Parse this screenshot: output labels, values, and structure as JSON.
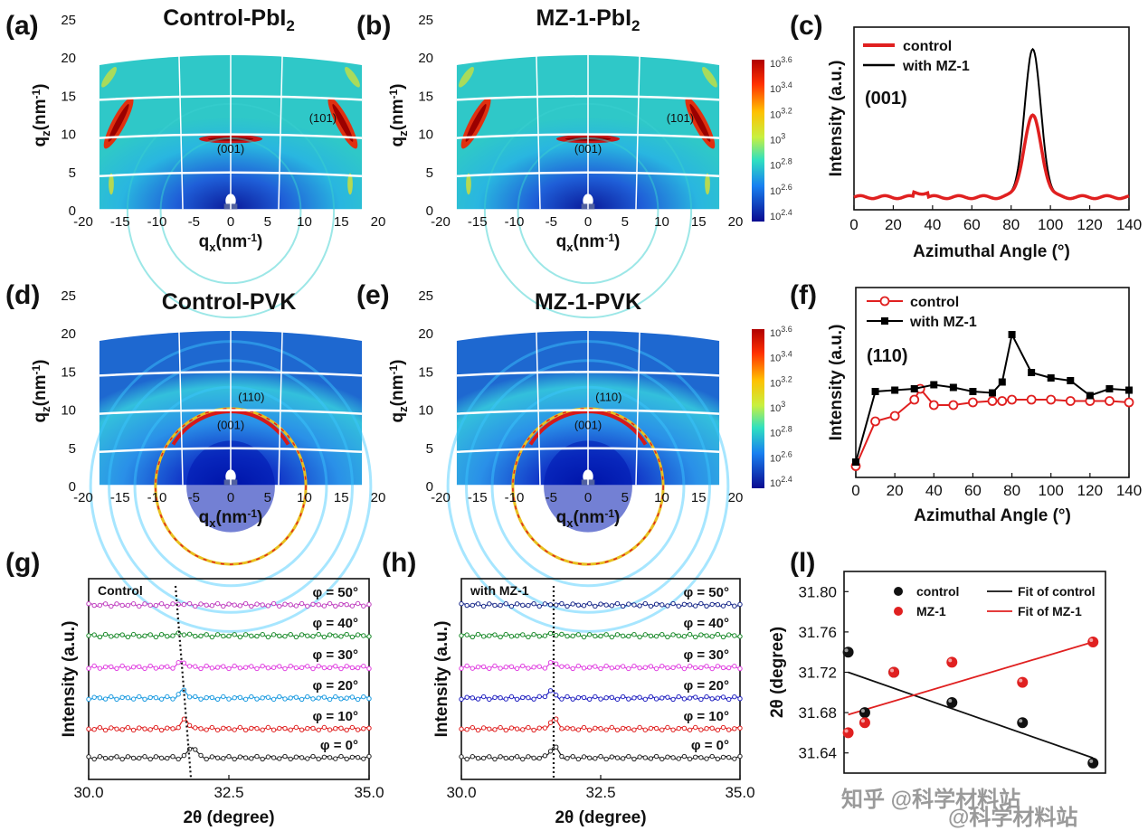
{
  "chart_data": [
    {
      "id": "a",
      "type": "heatmap",
      "panel_label": "(a)",
      "title": "Control-PbI2",
      "title_main": "Control-PbI",
      "title_sub": "2",
      "xlabel": "qx(nm-1)",
      "ylabel": "qz(nm-1)",
      "xlim": [
        -20,
        20
      ],
      "ylim": [
        0,
        25
      ],
      "xticks": [
        "-20",
        "-15",
        "-10",
        "-5",
        "0",
        "5",
        "10",
        "15",
        "20"
      ],
      "yticks": [
        "0",
        "5",
        "10",
        "15",
        "20",
        "25"
      ],
      "annotations": [
        "(001)",
        "(101)"
      ],
      "style": "pbi2"
    },
    {
      "id": "b",
      "type": "heatmap",
      "panel_label": "(b)",
      "title": "MZ-1-PbI2",
      "title_main": "MZ-1-PbI",
      "title_sub": "2",
      "xlabel": "qx(nm-1)",
      "ylabel": "qz(nm-1)",
      "xlim": [
        -20,
        20
      ],
      "ylim": [
        0,
        25
      ],
      "xticks": [
        "-20",
        "-15",
        "-10",
        "-5",
        "0",
        "5",
        "10",
        "15",
        "20"
      ],
      "yticks": [
        "0",
        "5",
        "10",
        "15",
        "20",
        "25"
      ],
      "annotations": [
        "(001)",
        "(101)"
      ],
      "style": "pbi2",
      "colorbar": [
        "10^3.6",
        "10^3.4",
        "10^3.2",
        "10^3",
        "10^2.8",
        "10^2.6",
        "10^2.4"
      ]
    },
    {
      "id": "c",
      "type": "line",
      "panel_label": "(c)",
      "xlabel": "Azimuthal Angle (°)",
      "ylabel": "Intensity (a.u.)",
      "xlim": [
        0,
        140
      ],
      "xticks": [
        "0",
        "20",
        "40",
        "60",
        "80",
        "100",
        "120",
        "140"
      ],
      "annotation": "(001)",
      "series": [
        {
          "name": "control",
          "color": "#e02020",
          "peak_center": 91,
          "peak_height": 0.55,
          "peak_width": 4.5
        },
        {
          "name": "with MZ-1",
          "color": "#000000",
          "peak_center": 91,
          "peak_height": 1.0,
          "peak_width": 4.2
        }
      ]
    },
    {
      "id": "d",
      "type": "heatmap",
      "panel_label": "(d)",
      "title": "Control-PVK",
      "xlabel": "qx(nm-1)",
      "ylabel": "qz(nm-1)",
      "xlim": [
        -20,
        20
      ],
      "ylim": [
        0,
        25
      ],
      "xticks": [
        "-20",
        "-15",
        "-10",
        "-5",
        "0",
        "5",
        "10",
        "15",
        "20"
      ],
      "yticks": [
        "0",
        "5",
        "10",
        "15",
        "20",
        "25"
      ],
      "annotations": [
        "(110)",
        "(001)"
      ],
      "style": "pvk"
    },
    {
      "id": "e",
      "type": "heatmap",
      "panel_label": "(e)",
      "title": "MZ-1-PVK",
      "xlabel": "qx(nm-1)",
      "ylabel": "qz(nm-1)",
      "xlim": [
        -20,
        20
      ],
      "ylim": [
        0,
        25
      ],
      "xticks": [
        "-20",
        "-15",
        "-10",
        "-5",
        "0",
        "5",
        "10",
        "15",
        "20"
      ],
      "yticks": [
        "0",
        "5",
        "10",
        "15",
        "20",
        "25"
      ],
      "annotations": [
        "(110)",
        "(001)"
      ],
      "style": "pvk",
      "colorbar": [
        "10^3.6",
        "10^3.4",
        "10^3.2",
        "10^3",
        "10^2.8",
        "10^2.6",
        "10^2.4"
      ]
    },
    {
      "id": "f",
      "type": "line",
      "panel_label": "(f)",
      "xlabel": "Azimuthal Angle (°)",
      "ylabel": "Intensity (a.u.)",
      "xlim": [
        0,
        140
      ],
      "xticks": [
        "0",
        "20",
        "40",
        "60",
        "80",
        "100",
        "120",
        "140"
      ],
      "annotation": "(110)",
      "x": [
        0,
        10,
        20,
        30,
        33,
        40,
        50,
        60,
        70,
        75,
        80,
        90,
        100,
        110,
        120,
        130,
        140
      ],
      "series": [
        {
          "name": "control",
          "color": "#e02020",
          "marker": "circle",
          "values": [
            0.03,
            0.36,
            0.4,
            0.52,
            0.6,
            0.48,
            0.48,
            0.5,
            0.51,
            0.51,
            0.52,
            0.52,
            0.52,
            0.51,
            0.51,
            0.51,
            0.5
          ]
        },
        {
          "name": "with MZ-1",
          "color": "#000000",
          "marker": "square",
          "x": [
            0,
            10,
            20,
            30,
            40,
            50,
            60,
            70,
            75,
            80,
            90,
            100,
            110,
            120,
            130,
            140
          ],
          "values": [
            0.06,
            0.58,
            0.59,
            0.6,
            0.63,
            0.61,
            0.58,
            0.57,
            0.65,
            1.0,
            0.72,
            0.68,
            0.66,
            0.55,
            0.6,
            0.59
          ]
        }
      ]
    },
    {
      "id": "g",
      "type": "line",
      "panel_label": "(g)",
      "box_label": "Control",
      "xlabel": "2θ (degree)",
      "ylabel": "Intensity (a.u.)",
      "xlim": [
        30.0,
        35.0
      ],
      "xticks": [
        "30.0",
        "32.5",
        "35.0"
      ],
      "series": [
        {
          "name": "φ = 0°",
          "color": "#222222",
          "peak_center": 31.85,
          "peak_height": 0.9
        },
        {
          "name": "φ = 10°",
          "color": "#e02020",
          "peak_center": 31.72,
          "peak_height": 0.7
        },
        {
          "name": "φ = 20°",
          "color": "#1a9ae0",
          "peak_center": 31.69,
          "peak_height": 0.6
        },
        {
          "name": "φ = 30°",
          "color": "#e040e0",
          "peak_center": 31.67,
          "peak_height": 0.45
        },
        {
          "name": "φ = 40°",
          "color": "#1a8a2a",
          "peak_center": 31.66,
          "peak_height": 0.2
        },
        {
          "name": "φ = 50°",
          "color": "#c040c0",
          "peak_center": 31.65,
          "peak_height": 0.1
        }
      ]
    },
    {
      "id": "h",
      "type": "line",
      "panel_label": "(h)",
      "box_label": "with MZ-1",
      "xlabel": "2θ (degree)",
      "ylabel": "Intensity (a.u.)",
      "xlim": [
        30.0,
        35.0
      ],
      "xticks": [
        "30.0",
        "32.5",
        "35.0"
      ],
      "series": [
        {
          "name": "φ = 0°",
          "color": "#222222",
          "peak_center": 31.66,
          "peak_height": 0.9
        },
        {
          "name": "φ = 10°",
          "color": "#e02020",
          "peak_center": 31.66,
          "peak_height": 0.8
        },
        {
          "name": "φ = 20°",
          "color": "#2020c0",
          "peak_center": 31.6,
          "peak_height": 0.55
        },
        {
          "name": "φ = 30°",
          "color": "#e040e0",
          "peak_center": 31.66,
          "peak_height": 0.4
        },
        {
          "name": "φ = 40°",
          "color": "#1a8a2a",
          "peak_center": 31.66,
          "peak_height": 0.15
        },
        {
          "name": "φ = 50°",
          "color": "#1a2a8a",
          "peak_center": 31.66,
          "peak_height": 0.05
        }
      ]
    },
    {
      "id": "i",
      "type": "scatter",
      "panel_label": "(l)",
      "ylabel": "2θ (degree)",
      "ylim": [
        31.62,
        31.82
      ],
      "yticks": [
        "31.64",
        "31.68",
        "31.72",
        "31.76",
        "31.80"
      ],
      "xlim": [
        -0.01,
        0.62
      ],
      "series": [
        {
          "name": "control",
          "color": "#111111",
          "x": [
            0.0,
            0.04,
            0.11,
            0.25,
            0.42,
            0.59
          ],
          "values": [
            31.74,
            31.68,
            31.72,
            31.69,
            31.67,
            31.63
          ]
        },
        {
          "name": "MZ-1",
          "color": "#e02020",
          "x": [
            0.0,
            0.04,
            0.11,
            0.25,
            0.42,
            0.59
          ],
          "values": [
            31.66,
            31.67,
            31.72,
            31.73,
            31.71,
            31.75
          ]
        }
      ],
      "fits": [
        {
          "name": "Fit of control",
          "color": "#111111",
          "y_start": 31.72,
          "y_end": 31.635
        },
        {
          "name": "Fit of MZ-1",
          "color": "#e02020",
          "y_start": 31.678,
          "y_end": 31.75
        }
      ]
    }
  ],
  "watermark": {
    "line1": "知乎 @科学材料站",
    "line2": "@科学材料站"
  }
}
